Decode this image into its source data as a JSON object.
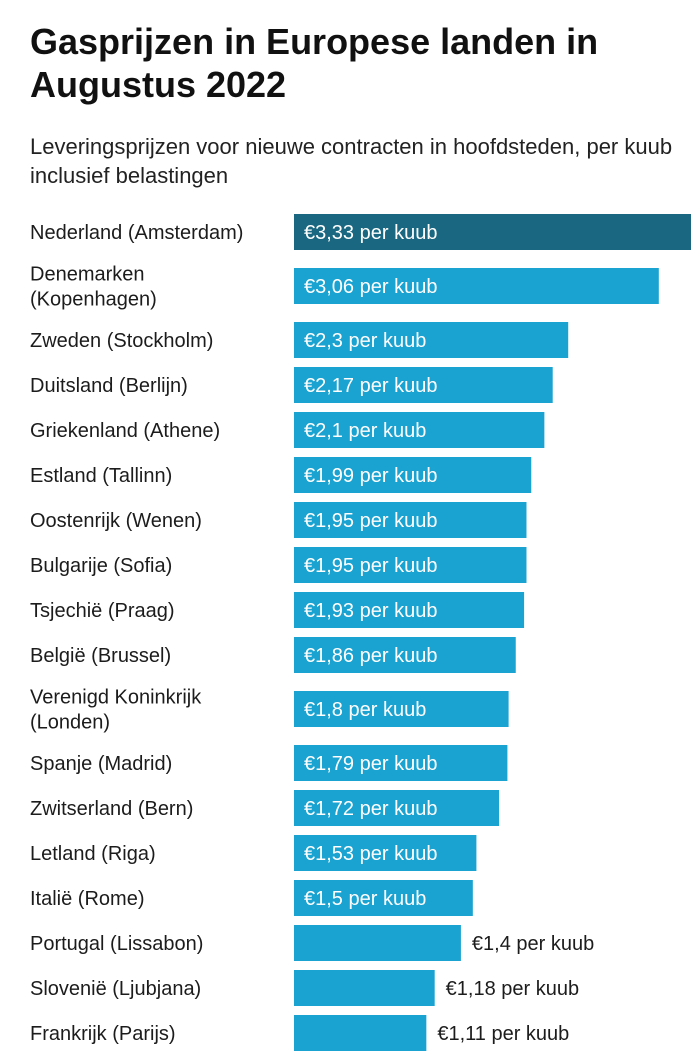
{
  "chart_data": {
    "type": "bar",
    "orientation": "horizontal",
    "title": "Gasprijzen in Europese landen in Augustus 2022",
    "subtitle": "Leveringsprijzen voor nieuwe contracten in hoofdsteden, per kuub inclusief belastingen",
    "unit": "€ per kuub",
    "highlight_color": "#1a6781",
    "bar_color": "#1aa2d1",
    "categories": [
      [
        "Nederland (Amsterdam)"
      ],
      [
        "Denemarken",
        "(Kopenhagen)"
      ],
      [
        "Zweden (Stockholm)"
      ],
      [
        "Duitsland (Berlijn)"
      ],
      [
        "Griekenland (Athene)"
      ],
      [
        "Estland (Tallinn)"
      ],
      [
        "Oostenrijk (Wenen)"
      ],
      [
        "Bulgarije (Sofia)"
      ],
      [
        "Tsjechië (Praag)"
      ],
      [
        "België (Brussel)"
      ],
      [
        "Verenigd Koninkrijk",
        "(Londen)"
      ],
      [
        "Spanje (Madrid)"
      ],
      [
        "Zwitserland (Bern)"
      ],
      [
        "Letland (Riga)"
      ],
      [
        "Italië (Rome)"
      ],
      [
        "Portugal (Lissabon)"
      ],
      [
        "Slovenië (Ljubjana)"
      ],
      [
        "Frankrijk (Parijs)"
      ]
    ],
    "values": [
      3.33,
      3.06,
      2.3,
      2.17,
      2.1,
      1.99,
      1.95,
      1.95,
      1.93,
      1.86,
      1.8,
      1.79,
      1.72,
      1.53,
      1.5,
      1.4,
      1.18,
      1.11
    ],
    "value_labels": [
      "€3,33 per kuub",
      "€3,06 per kuub",
      "€2,3 per kuub",
      "€2,17 per kuub",
      "€2,1 per kuub",
      "€1,99 per kuub",
      "€1,95 per kuub",
      "€1,95 per kuub",
      "€1,93 per kuub",
      "€1,86 per kuub",
      "€1,8 per kuub",
      "€1,79 per kuub",
      "€1,72 per kuub",
      "€1,53 per kuub",
      "€1,5 per kuub",
      "€1,4 per kuub",
      "€1,18 per kuub",
      "€1,11 per kuub"
    ],
    "highlighted_index": 0,
    "xlim": [
      0,
      3.33
    ],
    "grid": false,
    "legend": false
  }
}
